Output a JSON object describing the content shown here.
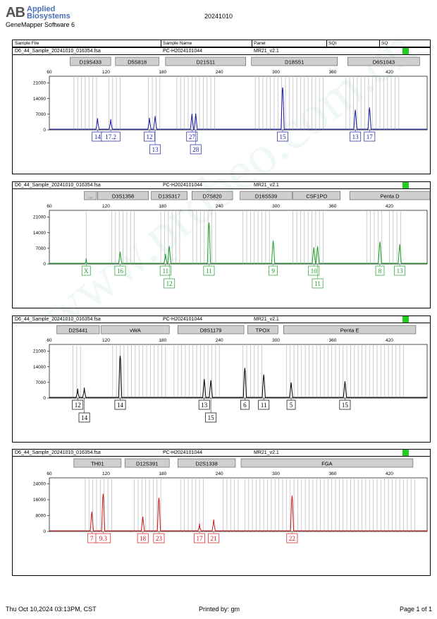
{
  "header": {
    "brand_short": "AB",
    "brand_line1": "Applied",
    "brand_line2": "Biosystems",
    "software": "GeneMapper Software 6",
    "run_date": "20241010",
    "col_sample_file": "Sample File",
    "col_sample_name": "Sample Name",
    "col_panel": "Panel",
    "col_sqi": "SQI",
    "col_sq": "SQ"
  },
  "sample": {
    "file": "D6_44_Sample_20241010_016354.fsa",
    "name": "PC-H2024101044",
    "panel": "MR21_v2.1"
  },
  "colors": {
    "blue": "#1a1aa8",
    "green": "#1e9e2a",
    "black": "#000000",
    "red": "#d01818",
    "status": "#22cc22"
  },
  "chart_data": [
    {
      "type": "line",
      "dye": "blue",
      "x_ticks": [
        "60",
        "120",
        "180",
        "240",
        "300",
        "360",
        "420"
      ],
      "y_ticks": [
        "21000",
        "14000",
        "7000",
        "0"
      ],
      "xlim": [
        60,
        460
      ],
      "ylim": [
        0,
        24000
      ],
      "markers": [
        {
          "label": "D19S433",
          "start": 82,
          "end": 125
        },
        {
          "label": "D5S818",
          "start": 130,
          "end": 176
        },
        {
          "label": "D21S11",
          "start": 183,
          "end": 268
        },
        {
          "label": "D18S51",
          "start": 274,
          "end": 365
        },
        {
          "label": "D6S1043",
          "start": 376,
          "end": 452
        }
      ],
      "bins": [
        [
          86,
          113
        ],
        [
          123,
          135
        ],
        [
          165,
          180
        ],
        [
          195,
          237
        ],
        [
          278,
          352
        ],
        [
          374,
          433
        ]
      ],
      "peaks": [
        {
          "x": 111,
          "h": 5200
        },
        {
          "x": 125,
          "h": 4800
        },
        {
          "x": 166,
          "h": 5400
        },
        {
          "x": 172,
          "h": 6200
        },
        {
          "x": 211,
          "h": 7200
        },
        {
          "x": 215,
          "h": 7300
        },
        {
          "x": 307,
          "h": 19000
        },
        {
          "x": 384,
          "h": 9000
        },
        {
          "x": 399,
          "h": 10000
        }
      ],
      "alleles": [
        {
          "x": 111,
          "row": 1,
          "label": "14"
        },
        {
          "x": 125,
          "row": 1,
          "label": "17.2"
        },
        {
          "x": 166,
          "row": 1,
          "label": "12"
        },
        {
          "x": 172,
          "row": 2,
          "label": "13"
        },
        {
          "x": 211,
          "row": 1,
          "label": "27"
        },
        {
          "x": 215,
          "row": 2,
          "label": "28"
        },
        {
          "x": 307,
          "row": 1,
          "label": "15"
        },
        {
          "x": 384,
          "row": 1,
          "label": "13"
        },
        {
          "x": 399,
          "row": 1,
          "label": "17"
        }
      ]
    },
    {
      "type": "line",
      "dye": "green",
      "x_ticks": [
        "60",
        "120",
        "180",
        "240",
        "300",
        "360",
        "420"
      ],
      "y_ticks": [
        "21000",
        "14000",
        "7000",
        "0"
      ],
      "xlim": [
        60,
        460
      ],
      "ylim": [
        0,
        24000
      ],
      "markers": [
        {
          "label": "...",
          "start": 97,
          "end": 110
        },
        {
          "label": "D3S1358",
          "start": 111,
          "end": 165
        },
        {
          "label": "D13S317",
          "start": 168,
          "end": 206
        },
        {
          "label": "D7S820",
          "start": 211,
          "end": 254
        },
        {
          "label": "D16S539",
          "start": 262,
          "end": 317
        },
        {
          "label": "CSF1PO",
          "start": 318,
          "end": 368
        },
        {
          "label": "Penta D",
          "start": 378,
          "end": 463
        }
      ],
      "bins": [
        [
          99,
          100
        ],
        [
          126,
          150
        ],
        [
          178,
          200
        ],
        [
          212,
          236
        ],
        [
          265,
          295
        ],
        [
          318,
          350
        ],
        [
          396,
          413
        ],
        [
          420,
          434
        ]
      ],
      "peaks": [
        {
          "x": 99,
          "h": 2500
        },
        {
          "x": 135,
          "h": 5500
        },
        {
          "x": 183,
          "h": 4500
        },
        {
          "x": 187,
          "h": 8000
        },
        {
          "x": 229,
          "h": 18500
        },
        {
          "x": 297,
          "h": 10500
        },
        {
          "x": 340,
          "h": 7500
        },
        {
          "x": 344,
          "h": 8000
        },
        {
          "x": 410,
          "h": 10000
        },
        {
          "x": 431,
          "h": 8800
        }
      ],
      "alleles": [
        {
          "x": 99,
          "row": 1,
          "label": "X"
        },
        {
          "x": 135,
          "row": 1,
          "label": "16"
        },
        {
          "x": 183,
          "row": 1,
          "label": "11"
        },
        {
          "x": 187,
          "row": 2,
          "label": "12"
        },
        {
          "x": 229,
          "row": 1,
          "label": "11"
        },
        {
          "x": 297,
          "row": 1,
          "label": "9"
        },
        {
          "x": 340,
          "row": 1,
          "label": "10"
        },
        {
          "x": 344,
          "row": 2,
          "label": "11"
        },
        {
          "x": 410,
          "row": 1,
          "label": "8"
        },
        {
          "x": 431,
          "row": 1,
          "label": "13"
        }
      ]
    },
    {
      "type": "line",
      "dye": "black",
      "x_ticks": [
        "60",
        "120",
        "180",
        "240",
        "300",
        "360",
        "420"
      ],
      "y_ticks": [
        "21000",
        "14000",
        "7000",
        "0"
      ],
      "xlim": [
        60,
        460
      ],
      "ylim": [
        0,
        24000
      ],
      "markers": [
        {
          "label": "D2S441",
          "start": 68,
          "end": 113
        },
        {
          "label": "vWA",
          "start": 115,
          "end": 187
        },
        {
          "label": "D8S1179",
          "start": 196,
          "end": 266
        },
        {
          "label": "TPOX",
          "start": 270,
          "end": 302
        },
        {
          "label": "Penta E",
          "start": 308,
          "end": 448
        }
      ],
      "bins": [
        [
          85,
          95
        ],
        [
          127,
          185
        ],
        [
          192,
          243
        ],
        [
          265,
          285
        ],
        [
          311,
          438
        ]
      ],
      "peaks": [
        {
          "x": 90,
          "h": 4200
        },
        {
          "x": 97,
          "h": 4700
        },
        {
          "x": 135,
          "h": 19000
        },
        {
          "x": 224,
          "h": 8500
        },
        {
          "x": 231,
          "h": 8000
        },
        {
          "x": 267,
          "h": 13500
        },
        {
          "x": 287,
          "h": 10500
        },
        {
          "x": 316,
          "h": 7000
        },
        {
          "x": 373,
          "h": 7500
        }
      ],
      "alleles": [
        {
          "x": 90,
          "row": 1,
          "label": "12"
        },
        {
          "x": 97,
          "row": 2,
          "label": "14"
        },
        {
          "x": 135,
          "row": 1,
          "label": "14"
        },
        {
          "x": 224,
          "row": 1,
          "label": "13"
        },
        {
          "x": 231,
          "row": 2,
          "label": "15"
        },
        {
          "x": 267,
          "row": 1,
          "label": "6"
        },
        {
          "x": 287,
          "row": 1,
          "label": "11"
        },
        {
          "x": 316,
          "row": 1,
          "label": "5"
        },
        {
          "x": 373,
          "row": 1,
          "label": "15"
        }
      ]
    },
    {
      "type": "line",
      "dye": "red",
      "x_ticks": [
        "60",
        "120",
        "180",
        "240",
        "300",
        "360",
        "420"
      ],
      "y_ticks": [
        "24000",
        "16000",
        "8000",
        "0"
      ],
      "xlim": [
        60,
        460
      ],
      "ylim": [
        0,
        27000
      ],
      "markers": [
        {
          "label": "TH01",
          "start": 86,
          "end": 136
        },
        {
          "label": "D12S391",
          "start": 140,
          "end": 187
        },
        {
          "label": "D2S1338",
          "start": 196,
          "end": 257
        },
        {
          "label": "FGA",
          "start": 263,
          "end": 445
        }
      ],
      "bins": [
        [
          98,
          128
        ],
        [
          150,
          180
        ],
        [
          199,
          225
        ],
        [
          244,
          260
        ],
        [
          267,
          448
        ]
      ],
      "peaks": [
        {
          "x": 105,
          "h": 10000
        },
        {
          "x": 117,
          "h": 19000
        },
        {
          "x": 159,
          "h": 7500
        },
        {
          "x": 176,
          "h": 17000
        },
        {
          "x": 219,
          "h": 4000
        },
        {
          "x": 234,
          "h": 6000
        },
        {
          "x": 317,
          "h": 18000
        }
      ],
      "alleles": [
        {
          "x": 105,
          "row": 1,
          "label": "7"
        },
        {
          "x": 117,
          "row": 1,
          "label": "9.3"
        },
        {
          "x": 159,
          "row": 1,
          "label": "18"
        },
        {
          "x": 176,
          "row": 1,
          "label": "23"
        },
        {
          "x": 219,
          "row": 1,
          "label": "17"
        },
        {
          "x": 234,
          "row": 1,
          "label": "21"
        },
        {
          "x": 317,
          "row": 1,
          "label": "22"
        }
      ]
    }
  ],
  "footer": {
    "printed_at": "Thu Oct 10,2024 03:13PM, CST",
    "printed_by": "Printed by: gm",
    "page": "Page 1 of 1"
  },
  "watermark": "www.probeo.com.cn"
}
